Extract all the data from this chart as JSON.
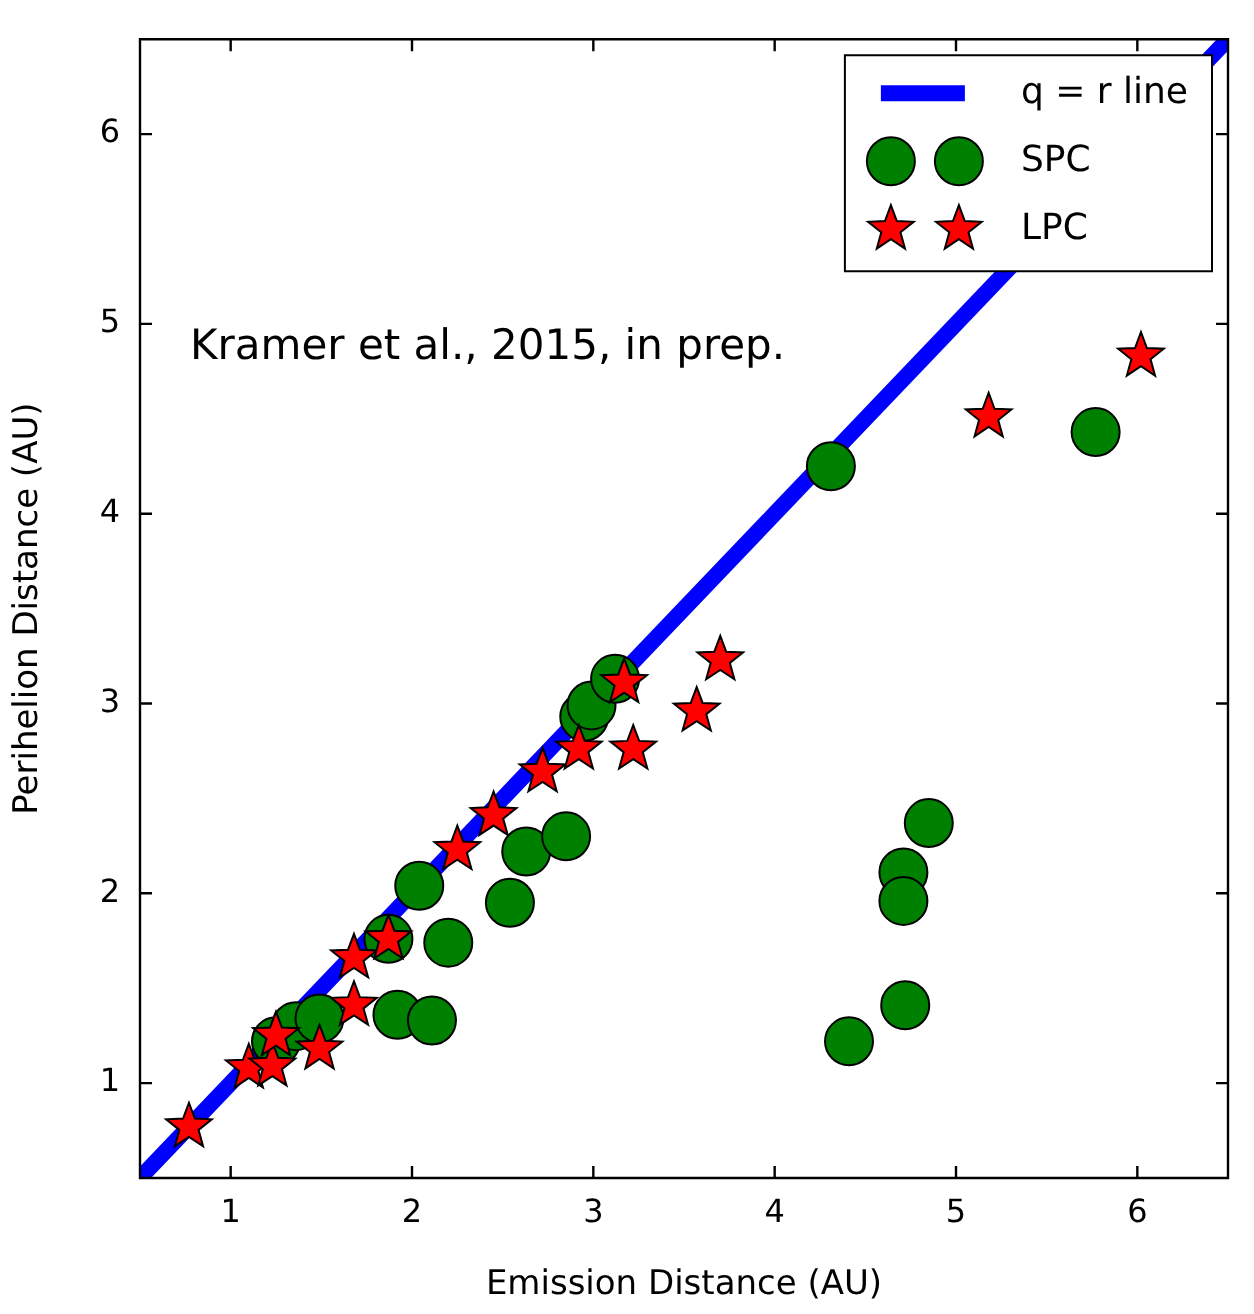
{
  "chart_data": {
    "type": "scatter",
    "xlabel": "Emission Distance (AU)",
    "ylabel": "Perihelion Distance (AU)",
    "annotations": [
      "Kramer et al., 2015, in prep."
    ],
    "xlim": [
      0.5,
      6.5
    ],
    "xticks": [
      1,
      2,
      3,
      4,
      5,
      6
    ],
    "ylim": [
      0.5,
      6.5
    ],
    "yticks": [
      1,
      2,
      3,
      4,
      5,
      6
    ],
    "grid": false,
    "legend": "top right",
    "series": [
      {
        "name": "q = r line",
        "type": "line",
        "color": "#0000ff",
        "marker": "none",
        "x": [
          0.5,
          6.5
        ],
        "values": [
          0.5,
          6.5
        ]
      },
      {
        "name": "SPC",
        "color": "#008000",
        "marker": "circle",
        "x": [
          2.04,
          2.2,
          2.54,
          2.63,
          2.85,
          1.87,
          1.92,
          2.11,
          1.25,
          1.36,
          1.49,
          2.95,
          2.99,
          3.12,
          4.31,
          5.77,
          4.85,
          4.71,
          4.71,
          4.72,
          4.41
        ],
        "values": [
          2.04,
          1.74,
          1.95,
          2.22,
          2.3,
          1.76,
          1.36,
          1.33,
          1.22,
          1.3,
          1.34,
          2.93,
          2.99,
          3.13,
          4.25,
          4.43,
          2.37,
          2.11,
          1.96,
          1.41,
          1.22
        ]
      },
      {
        "name": "LPC",
        "color": "#ff0000",
        "marker": "star",
        "x": [
          0.77,
          1.1,
          1.23,
          1.25,
          1.49,
          1.68,
          1.68,
          1.87,
          2.25,
          2.45,
          2.72,
          2.92,
          3.22,
          3.17,
          3.57,
          3.7,
          5.18,
          6.02
        ],
        "values": [
          0.77,
          1.08,
          1.09,
          1.25,
          1.18,
          1.41,
          1.66,
          1.76,
          2.23,
          2.41,
          2.64,
          2.76,
          2.76,
          3.11,
          2.96,
          3.23,
          4.51,
          4.83
        ]
      }
    ]
  }
}
